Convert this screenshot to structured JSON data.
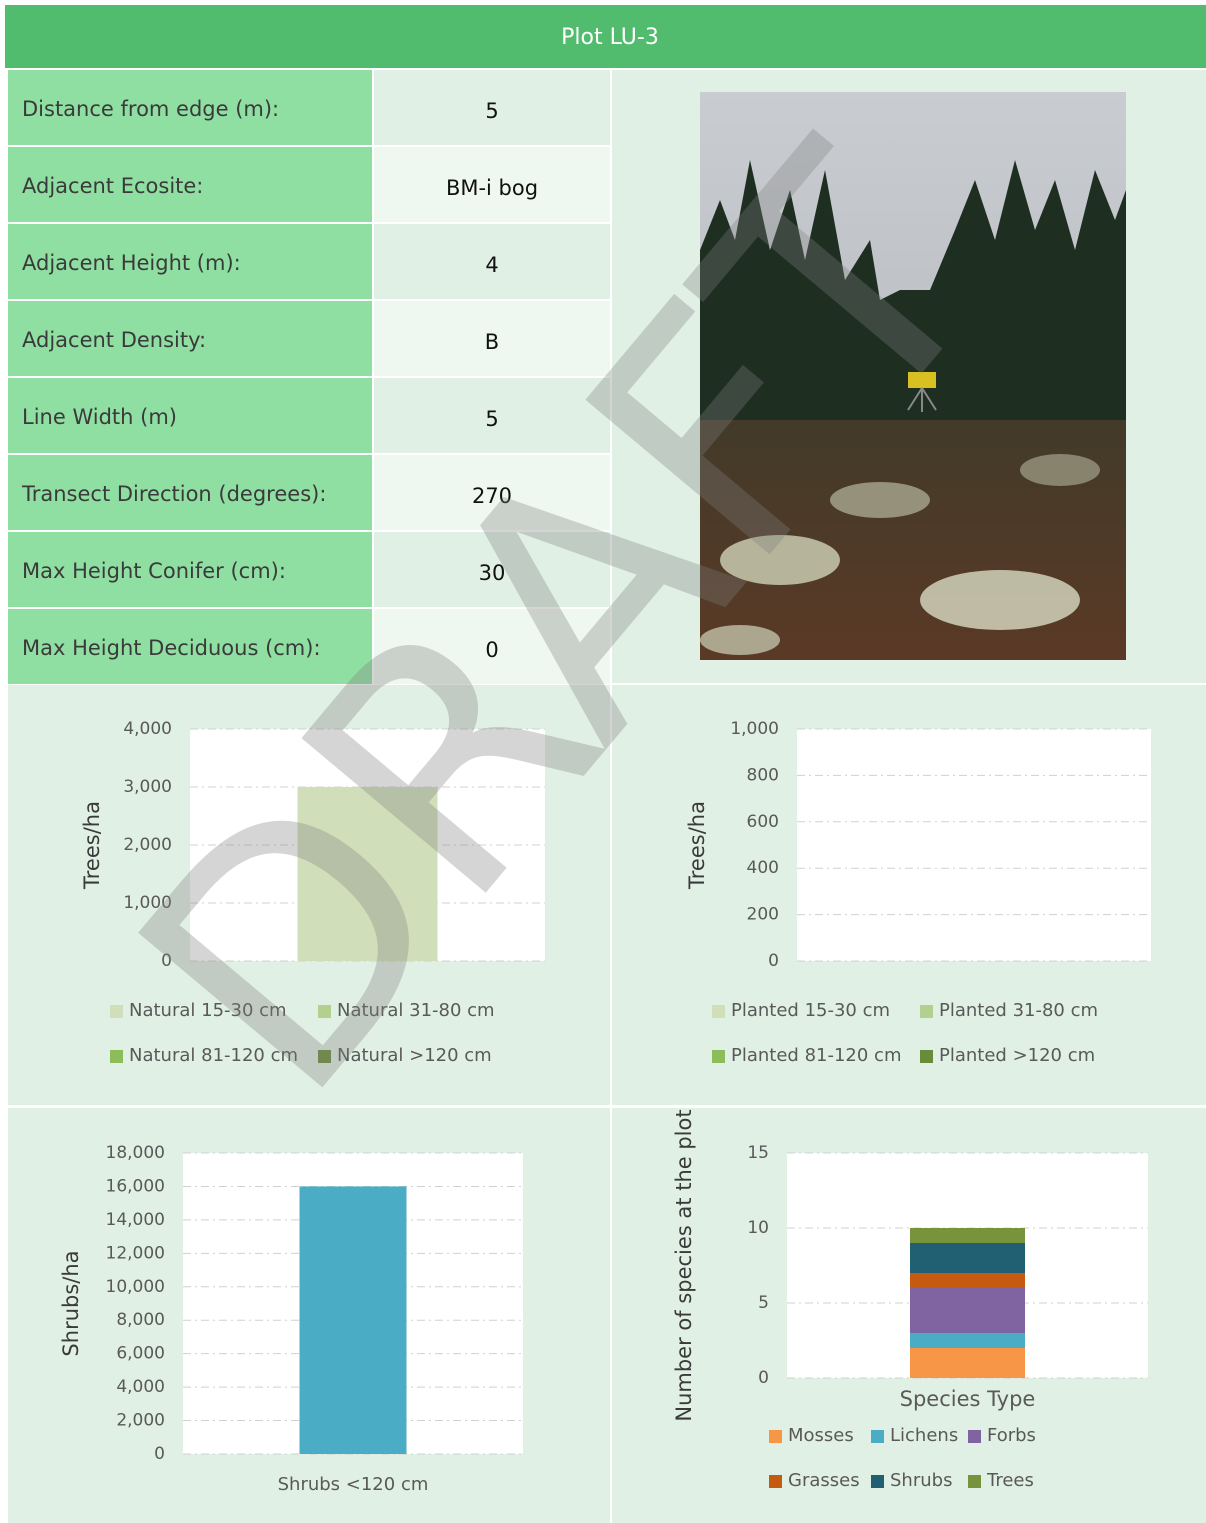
{
  "title": "Plot LU-3",
  "table": {
    "rows": [
      [
        "Distance from edge (m):",
        "5"
      ],
      [
        "Adjacent Ecosite:",
        "BM-i bog"
      ],
      [
        "Adjacent Height (m):",
        "4"
      ],
      [
        "Adjacent Density:",
        "B"
      ],
      [
        "Line Width (m)",
        "5"
      ],
      [
        "Transect Direction (degrees):",
        "270"
      ],
      [
        "Max Height Conifer (cm):",
        "30"
      ],
      [
        "Max Height Deciduous (cm):",
        "0"
      ]
    ]
  },
  "watermark": "DRAFT",
  "chart_data": [
    {
      "type": "bar",
      "stacked": true,
      "y_label": "Trees/ha",
      "categories": [
        null
      ],
      "series": [
        {
          "name": "Natural 15-30 cm",
          "color": "#d0dfba",
          "values": [
            3000
          ]
        },
        {
          "name": "Natural 31-80 cm",
          "color": "#b3d08e",
          "values": [
            0
          ]
        },
        {
          "name": "Natural 81-120 cm",
          "color": "#8dbd5b",
          "values": [
            0
          ]
        },
        {
          "name": "Natural >120 cm",
          "color": "#6a8c3a",
          "values": [
            0
          ]
        }
      ],
      "ylim": [
        0,
        4000
      ],
      "yticks": [
        0,
        {
          "value": 1000,
          "label": "1,000"
        },
        {
          "value": 2000,
          "label": "2,000"
        },
        {
          "value": 3000,
          "label": "3,000"
        },
        {
          "value": 4000,
          "label": "4,000"
        }
      ],
      "grid": true
    },
    {
      "type": "bar",
      "stacked": true,
      "y_label": "Trees/ha",
      "categories": [
        null
      ],
      "series": [
        {
          "name": "Planted 15-30 cm",
          "color": "#d0dfba",
          "values": [
            0
          ]
        },
        {
          "name": "Planted 31-80 cm",
          "color": "#b3d08e",
          "values": [
            0
          ]
        },
        {
          "name": "Planted 81-120 cm",
          "color": "#8dbd5b",
          "values": [
            0
          ]
        },
        {
          "name": "Planted >120 cm",
          "color": "#6a8c3a",
          "values": [
            0
          ]
        }
      ],
      "ylim": [
        0,
        1000
      ],
      "yticks": [
        0,
        200,
        400,
        600,
        800,
        {
          "value": 1000,
          "label": "1,000"
        }
      ],
      "grid": true
    },
    {
      "type": "bar",
      "y_label": "Shrubs/ha",
      "categories": [
        "Shrubs <120 cm"
      ],
      "values": [
        16000
      ],
      "color": "#4bacc6",
      "ylim": [
        0,
        18000
      ],
      "yticks": [
        0,
        {
          "value": 2000,
          "label": "2,000"
        },
        {
          "value": 4000,
          "label": "4,000"
        },
        {
          "value": 6000,
          "label": "6,000"
        },
        {
          "value": 8000,
          "label": "8,000"
        },
        {
          "value": 10000,
          "label": "10,000"
        },
        {
          "value": 12000,
          "label": "12,000"
        },
        {
          "value": 14000,
          "label": "14,000"
        },
        {
          "value": 16000,
          "label": "16,000"
        },
        {
          "value": 18000,
          "label": "18,000"
        }
      ],
      "grid": true
    },
    {
      "type": "bar",
      "stacked": true,
      "y_label": "Number of species at the plot",
      "categories": [
        "Species Type"
      ],
      "series": [
        {
          "name": "Mosses",
          "color": "#f79646",
          "values": [
            2
          ]
        },
        {
          "name": "Lichens",
          "color": "#4bacc6",
          "values": [
            1
          ]
        },
        {
          "name": "Forbs",
          "color": "#8064a2",
          "values": [
            3
          ]
        },
        {
          "name": "Grasses",
          "color": "#c55a11",
          "values": [
            1
          ]
        },
        {
          "name": "Shrubs",
          "color": "#215f73",
          "values": [
            2
          ]
        },
        {
          "name": "Trees",
          "color": "#77933c",
          "values": [
            1
          ]
        }
      ],
      "ylim": [
        0,
        15
      ],
      "yticks": [
        0,
        5,
        10,
        15
      ],
      "grid": true
    }
  ]
}
